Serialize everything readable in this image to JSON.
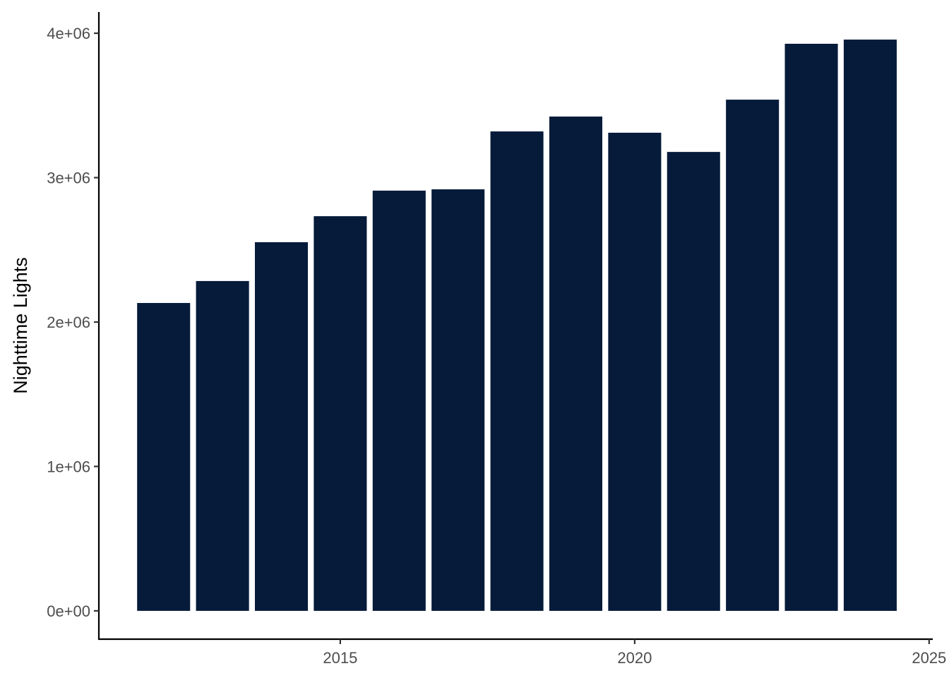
{
  "chart_data": {
    "type": "bar",
    "y_label": "Nighttime Lights",
    "x": [
      2012,
      2013,
      2014,
      2015,
      2016,
      2017,
      2018,
      2019,
      2020,
      2021,
      2022,
      2023,
      2024
    ],
    "values": [
      2132000,
      2284000,
      2553000,
      2733000,
      2910000,
      2919000,
      3320000,
      3423000,
      3311000,
      3178000,
      3540000,
      3927000,
      3956000
    ],
    "color": "#061a3a",
    "xlim": [
      2010.9,
      2025.05
    ],
    "xticks": [
      2015,
      2020,
      2025
    ],
    "ylim": [
      -196000,
      4147000
    ],
    "yticks": [
      {
        "value": 0,
        "label": "0e+00"
      },
      {
        "value": 1000000,
        "label": "1e+06"
      },
      {
        "value": 2000000,
        "label": "2e+06"
      },
      {
        "value": 3000000,
        "label": "3e+06"
      },
      {
        "value": 4000000,
        "label": "4e+06"
      }
    ],
    "grid": false
  }
}
